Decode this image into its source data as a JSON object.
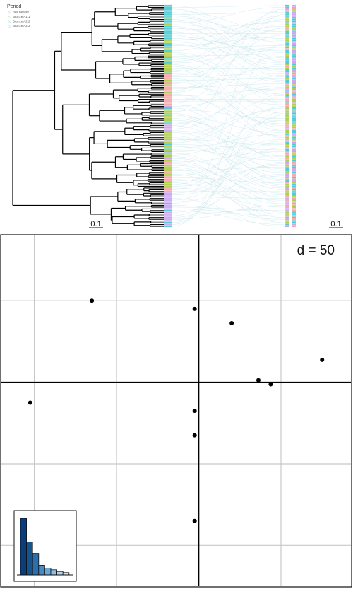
{
  "chart_data": [
    {
      "type": "tanglegram",
      "legend": {
        "title": "Period",
        "entries": [
          {
            "label": "Bell Beaker",
            "color": "#f4a0a0"
          },
          {
            "label": "Bronze A1 1",
            "color": "#a6c93a"
          },
          {
            "label": "Bronze A2 2",
            "color": "#3cc6d0"
          },
          {
            "label": "Bronze A2 3",
            "color": "#c79cf0"
          }
        ]
      },
      "left_scale_label": "0.1",
      "right_scale_label": "0.1",
      "colors": {
        "tree": "#000000",
        "connectors": "#bfe3ea"
      }
    },
    {
      "type": "scatter",
      "annotation": "d = 50",
      "points": [
        {
          "x": -2.6,
          "y": 2.0
        },
        {
          "x": -0.1,
          "y": 1.8
        },
        {
          "x": 0.8,
          "y": 1.45
        },
        {
          "x": 3.0,
          "y": 0.55
        },
        {
          "x": 1.45,
          "y": 0.05
        },
        {
          "x": 1.75,
          "y": -0.05
        },
        {
          "x": -4.1,
          "y": -0.5
        },
        {
          "x": -0.1,
          "y": -0.7
        },
        {
          "x": -0.1,
          "y": -1.3
        },
        {
          "x": -0.1,
          "y": -3.4
        }
      ],
      "xlim": [
        -4.8,
        3.7
      ],
      "ylim": [
        -5.0,
        3.6
      ],
      "grid": true,
      "eigenvalues": [
        100,
        58,
        38,
        17,
        12,
        9,
        6,
        4
      ],
      "eigen_colors": [
        "#0a3d7a",
        "#15558f",
        "#2c6fac",
        "#4a8ac3",
        "#6aa6d5",
        "#8fc0e2",
        "#b0d4ec",
        "#cfe5f5"
      ]
    }
  ]
}
